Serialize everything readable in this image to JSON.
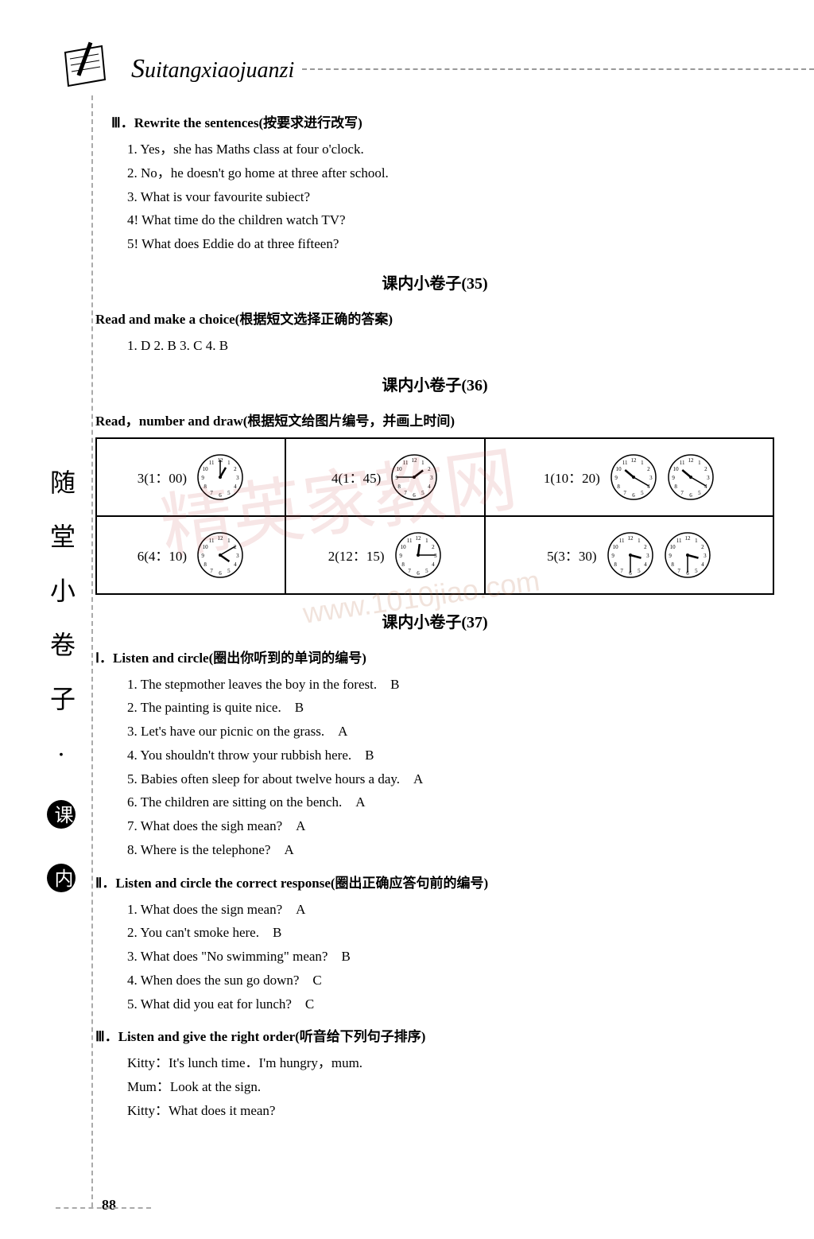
{
  "header": {
    "title_prefix": "S",
    "title_rest": "uitangxiaojuanzi"
  },
  "sidebar": {
    "chars": [
      "随",
      "堂",
      "小",
      "卷",
      "子",
      "·"
    ],
    "circles": [
      "课",
      "内"
    ]
  },
  "section3": {
    "heading": "Ⅲ．Rewrite the sentences(按要求进行改写)",
    "items": [
      "1. Yes，she has Maths class at four o'clock.",
      "2. No，he doesn't go home at three after school.",
      "3. What is vour favourite subiect?",
      "4! What time do the children watch TV?",
      "5! What does Eddie do at three fifteen?"
    ]
  },
  "quiz35": {
    "title": "课内小卷子(35)",
    "heading": "Read and make a choice(根据短文选择正确的答案)",
    "answers": "1. D  2. B  3. C  4. B"
  },
  "quiz36": {
    "title": "课内小卷子(36)",
    "heading": "Read，number and draw(根据短文给图片编号，并画上时间)",
    "table": {
      "rows": [
        [
          {
            "label": "3(1：00)",
            "hour": 1,
            "min": 0
          },
          {
            "label": "4(1：45)",
            "hour": 1,
            "min": 45
          },
          {
            "label": "1(10：20)",
            "hour": 10,
            "min": 20
          },
          {
            "label": "clock_only",
            "hour": 10,
            "min": 20
          }
        ],
        [
          {
            "label": "6(4：10)",
            "hour": 4,
            "min": 10
          },
          {
            "label": "2(12：15)",
            "hour": 12,
            "min": 15
          },
          {
            "label": "5(3：30)",
            "hour": 3,
            "min": 30
          },
          {
            "label": "clock_only",
            "hour": 3,
            "min": 30
          }
        ]
      ]
    }
  },
  "quiz37": {
    "title": "课内小卷子(37)",
    "s1_heading": "Ⅰ．Listen and circle(圈出你听到的单词的编号)",
    "s1_items": [
      "1. The stepmother leaves the boy in the forest.　B",
      "2. The painting is quite nice.　B",
      "3. Let's have our picnic on the grass.　A",
      "4. You shouldn't throw your rubbish here.　B",
      "5. Babies often sleep for about twelve hours a day.　A",
      "6. The children are sitting on the bench.　A",
      "7. What does the sigh mean?　A",
      "8. Where is the telephone?　A"
    ],
    "s2_heading": "Ⅱ．Listen and circle the correct response(圈出正确应答句前的编号)",
    "s2_items": [
      "1. What does the sign mean?　A",
      "2. You can't smoke here.　B",
      "3. What does \"No swimming\" mean?　B",
      "4. When does the sun go down?　C",
      "5. What did you eat for lunch?　C"
    ],
    "s3_heading": "Ⅲ．Listen and give the right order(听音给下列句子排序)",
    "s3_items": [
      "Kitty：It's lunch time．I'm hungry，mum.",
      "Mum：Look at the sign.",
      "Kitty：What does it mean?"
    ]
  },
  "page_number": "88",
  "clock": {
    "radius": 28,
    "stroke": "#000",
    "face_fill": "#fff"
  },
  "watermark": {
    "text1": "精英家教网",
    "text2": "www.1010jiao.com"
  }
}
